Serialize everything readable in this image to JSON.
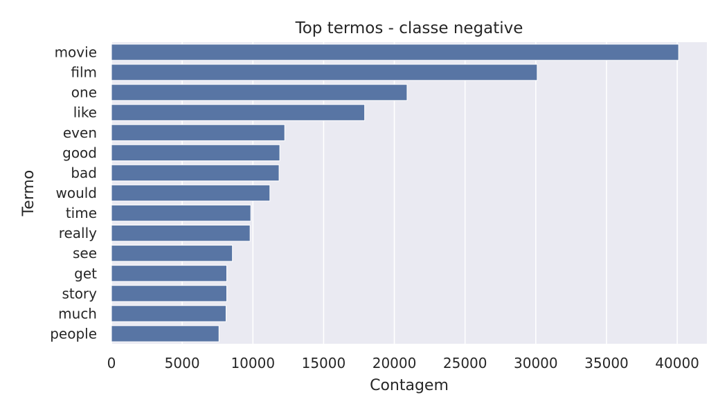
{
  "chart_data": {
    "type": "bar",
    "orientation": "horizontal",
    "title": "Top termos - classe negative",
    "xlabel": "Contagem",
    "ylabel": "Termo",
    "categories": [
      "movie",
      "film",
      "one",
      "like",
      "even",
      "good",
      "bad",
      "would",
      "time",
      "really",
      "see",
      "get",
      "story",
      "much",
      "people"
    ],
    "values": [
      40100,
      30100,
      20900,
      17900,
      12250,
      11900,
      11850,
      11200,
      9850,
      9800,
      8550,
      8150,
      8150,
      8100,
      7600
    ],
    "xlim": [
      0,
      42100
    ],
    "xticks": [
      0,
      5000,
      10000,
      15000,
      20000,
      25000,
      30000,
      35000,
      40000
    ],
    "xtick_labels": [
      "0",
      "5000",
      "10000",
      "15000",
      "20000",
      "25000",
      "30000",
      "35000",
      "40000"
    ],
    "grid": true,
    "colors": {
      "bar": "#5875a4",
      "plot_background": "#eaeaf2",
      "grid": "#ffffff",
      "text": "#262626"
    }
  }
}
